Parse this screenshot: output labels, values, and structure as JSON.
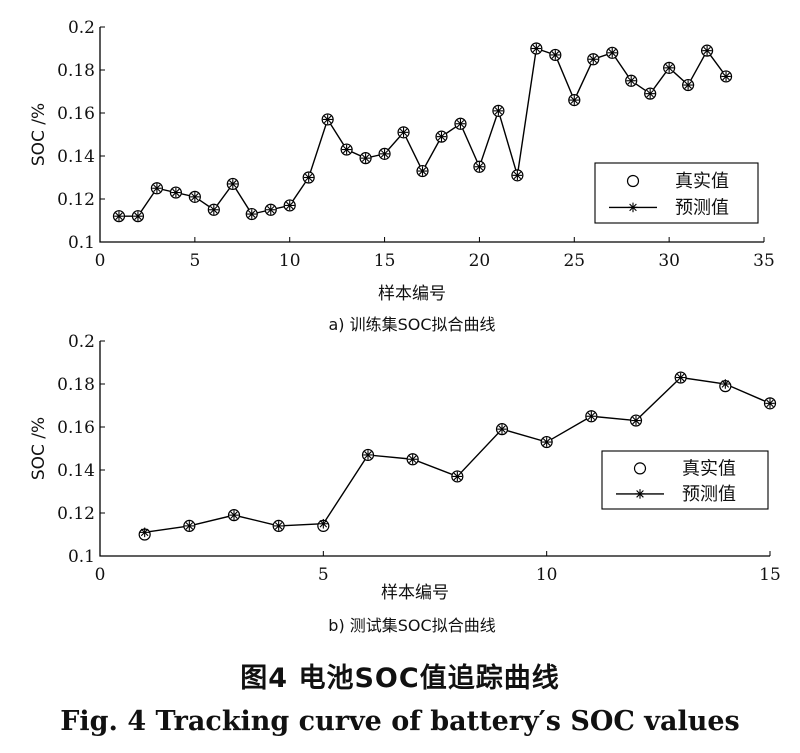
{
  "chart_data": [
    {
      "type": "line",
      "panel": "a",
      "caption": "a) 训练集SOC拟合曲线",
      "xlabel": "样本编号",
      "ylabel": "SOC /%",
      "xlim": [
        0,
        35
      ],
      "ylim": [
        0.1,
        0.2
      ],
      "xticks": [
        "0",
        "5",
        "10",
        "15",
        "20",
        "25",
        "30",
        "35"
      ],
      "yticks": [
        "0.1",
        "0.12",
        "0.14",
        "0.16",
        "0.18",
        "0.2"
      ],
      "legend_position": "center-right",
      "x": [
        1,
        2,
        3,
        4,
        5,
        6,
        7,
        8,
        9,
        10,
        11,
        12,
        13,
        14,
        15,
        16,
        17,
        18,
        19,
        20,
        21,
        22,
        23,
        24,
        25,
        26,
        27,
        28,
        29,
        30,
        31,
        32,
        33
      ],
      "series": [
        {
          "name": "真实值",
          "marker": "circle",
          "values": [
            0.112,
            0.112,
            0.125,
            0.123,
            0.121,
            0.115,
            0.127,
            0.113,
            0.115,
            0.117,
            0.13,
            0.157,
            0.143,
            0.139,
            0.141,
            0.151,
            0.133,
            0.149,
            0.155,
            0.135,
            0.161,
            0.131,
            0.19,
            0.187,
            0.166,
            0.185,
            0.188,
            0.175,
            0.169,
            0.181,
            0.173,
            0.189,
            0.177
          ]
        },
        {
          "name": "预测值",
          "marker": "star",
          "values": [
            0.112,
            0.112,
            0.125,
            0.123,
            0.121,
            0.115,
            0.127,
            0.113,
            0.115,
            0.117,
            0.13,
            0.157,
            0.143,
            0.139,
            0.141,
            0.151,
            0.133,
            0.149,
            0.155,
            0.135,
            0.161,
            0.131,
            0.19,
            0.187,
            0.166,
            0.185,
            0.188,
            0.175,
            0.169,
            0.181,
            0.173,
            0.189,
            0.177
          ]
        }
      ]
    },
    {
      "type": "line",
      "panel": "b",
      "caption": "b) 测试集SOC拟合曲线",
      "xlabel": "样本编号",
      "ylabel": "SOC /%",
      "xlim": [
        0,
        15
      ],
      "ylim": [
        0.1,
        0.2
      ],
      "xticks": [
        "0",
        "5",
        "10",
        "15"
      ],
      "yticks": [
        "0.1",
        "0.12",
        "0.14",
        "0.16",
        "0.18",
        "0.2"
      ],
      "legend_position": "center-right",
      "x": [
        1,
        2,
        3,
        4,
        5,
        6,
        7,
        8,
        9,
        10,
        11,
        12,
        13,
        14,
        15
      ],
      "series": [
        {
          "name": "真实值",
          "marker": "circle",
          "values": [
            0.11,
            0.114,
            0.119,
            0.114,
            0.114,
            0.147,
            0.145,
            0.137,
            0.159,
            0.153,
            0.165,
            0.163,
            0.183,
            0.179,
            0.171
          ]
        },
        {
          "name": "预测值",
          "marker": "star",
          "values": [
            0.111,
            0.114,
            0.119,
            0.114,
            0.115,
            0.147,
            0.145,
            0.137,
            0.159,
            0.153,
            0.165,
            0.163,
            0.183,
            0.18,
            0.171
          ]
        }
      ]
    }
  ],
  "figure": {
    "caption_cn": "图4  电池SOC值追踪曲线",
    "caption_en": "Fig. 4  Tracking curve of battery′s SOC values"
  }
}
